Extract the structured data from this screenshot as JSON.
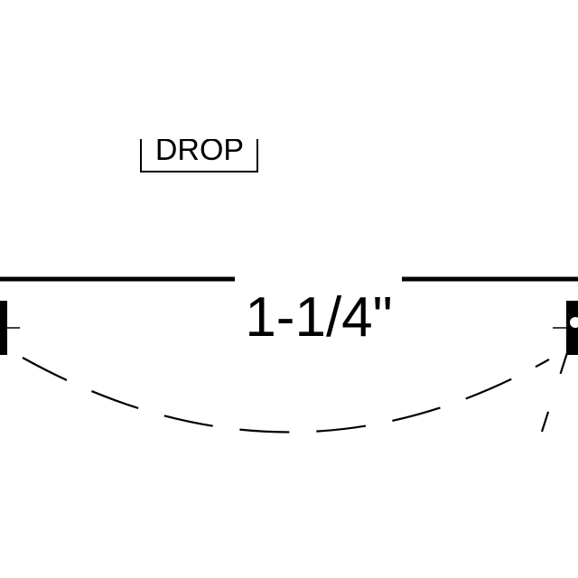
{
  "drawing": {
    "drop_label": "DROP",
    "dimension_label": "1-1/4\"",
    "line_color": "#000000",
    "background_color": "#ffffff"
  }
}
